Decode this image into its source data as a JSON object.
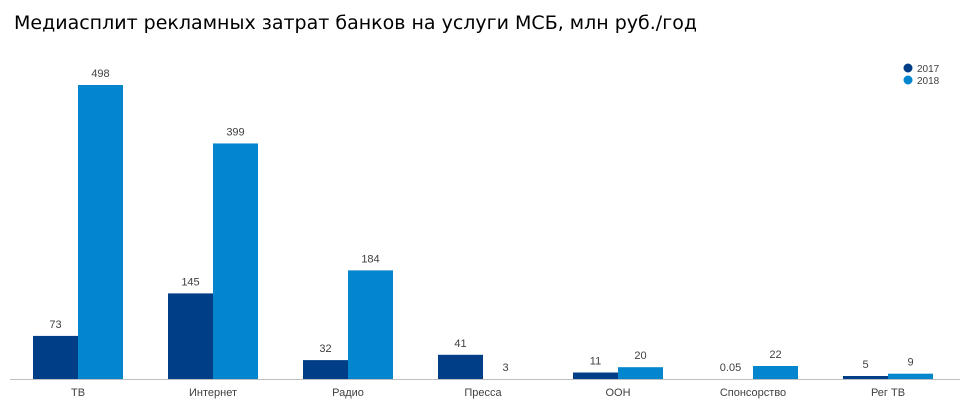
{
  "chart_data": {
    "type": "bar",
    "title": "Медиасплит рекламных затрат банков на услуги МСБ, млн руб./год",
    "xlabel": "",
    "ylabel": "",
    "ylim": [
      0,
      498
    ],
    "grid": false,
    "legend_position": "top-right",
    "categories": [
      "ТВ",
      "Интернет",
      "Радио",
      "Пресса",
      "OOH",
      "Спонсорство",
      "Рег ТВ"
    ],
    "series": [
      {
        "name": "2017",
        "color": "#003f87",
        "values": [
          73,
          145,
          32,
          41,
          11,
          0.05,
          5
        ],
        "labels": [
          "73",
          "145",
          "32",
          "41",
          "11",
          "0.05",
          "5"
        ]
      },
      {
        "name": "2018",
        "color": "#0386cd",
        "values": [
          498,
          399,
          184,
          3,
          20,
          22,
          9
        ],
        "labels": [
          "498",
          "399",
          "184",
          "3",
          "20",
          "22",
          "9"
        ]
      }
    ]
  }
}
